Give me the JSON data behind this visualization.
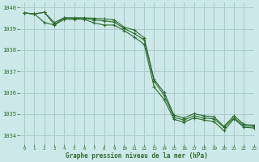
{
  "title": "Graphe pression niveau de la mer (hPa)",
  "bg_color": "#cce8e8",
  "grid_color": "#aacccc",
  "line_color": "#2d6b2d",
  "xlim": [
    -0.5,
    23
  ],
  "ylim": [
    1033.6,
    1040.25
  ],
  "yticks": [
    1034,
    1035,
    1036,
    1037,
    1038,
    1039,
    1040
  ],
  "xticks": [
    0,
    1,
    2,
    3,
    4,
    5,
    6,
    7,
    8,
    9,
    10,
    11,
    12,
    13,
    14,
    15,
    16,
    17,
    18,
    19,
    20,
    21,
    22,
    23
  ],
  "series": [
    [
      1039.75,
      1039.7,
      1039.78,
      1039.3,
      1039.52,
      1039.52,
      1039.52,
      1039.5,
      1039.47,
      1039.42,
      1039.08,
      1038.95,
      1038.58,
      1036.62,
      1036.02,
      1034.95,
      1034.82,
      1035.02,
      1034.92,
      1034.87,
      1034.42,
      1034.92,
      1034.52,
      1034.48
    ],
    [
      1039.75,
      1039.7,
      1039.78,
      1039.2,
      1039.52,
      1039.5,
      1039.5,
      1039.42,
      1039.38,
      1039.32,
      1039.02,
      1038.78,
      1038.48,
      1036.55,
      1035.88,
      1034.85,
      1034.72,
      1034.92,
      1034.82,
      1034.78,
      1034.38,
      1034.82,
      1034.45,
      1034.42
    ],
    [
      1039.75,
      1039.7,
      1039.3,
      1039.18,
      1039.45,
      1039.45,
      1039.45,
      1039.28,
      1039.18,
      1039.18,
      1038.92,
      1038.62,
      1038.28,
      1036.28,
      1035.68,
      1034.75,
      1034.62,
      1034.82,
      1034.72,
      1034.65,
      1034.22,
      1034.78,
      1034.38,
      1034.35
    ]
  ],
  "x_values": [
    0,
    1,
    2,
    3,
    4,
    5,
    6,
    7,
    8,
    9,
    10,
    11,
    12,
    13,
    14,
    15,
    16,
    17,
    18,
    19,
    20,
    21,
    22,
    23
  ]
}
